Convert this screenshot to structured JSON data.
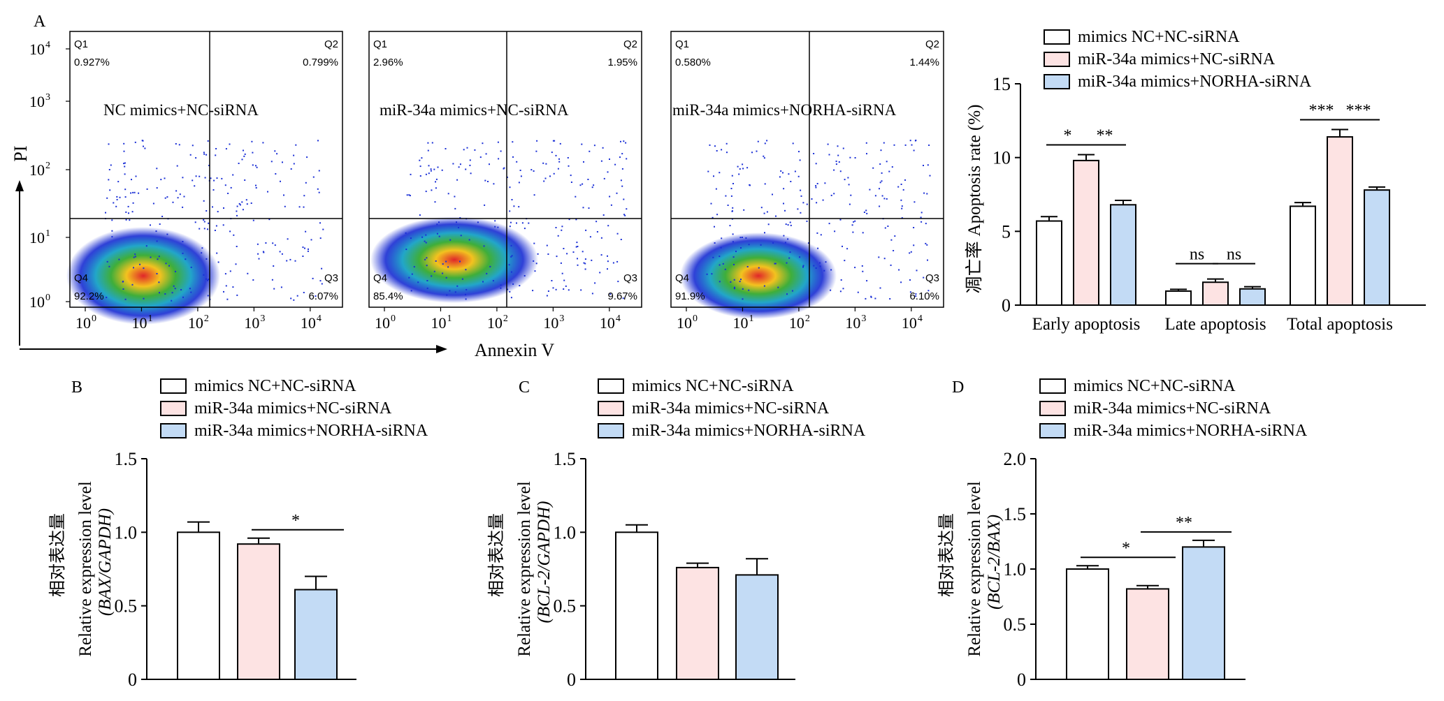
{
  "colors": {
    "group1": "#ffffff",
    "group2": "#fde3e3",
    "group3": "#c3dbf5",
    "stroke": "#000000"
  },
  "legend": [
    "mimics NC+NC-siRNA",
    "miR-34a mimics+NC-siRNA",
    "miR-34a mimics+NORHA-siRNA"
  ],
  "panel_labels": {
    "a": "A",
    "b": "B",
    "c": "C",
    "d": "D"
  },
  "flow": {
    "y_axis_label": "PI",
    "x_axis_label": "Annexin V",
    "x_tick_labels": [
      "0",
      "1",
      "2",
      "3",
      "4"
    ],
    "y_tick_labels": [
      "0",
      "1",
      "2",
      "3",
      "4"
    ],
    "plots": [
      {
        "title": "NC mimics+NC-siRNA",
        "quadrants": {
          "Q1": "0.927%",
          "Q2": "0.799%",
          "Q3": "6.07%",
          "Q4": "92.2%"
        }
      },
      {
        "title": "miR-34a mimics+NC-siRNA",
        "quadrants": {
          "Q1": "2.96%",
          "Q2": "1.95%",
          "Q3": "9.67%",
          "Q4": "85.4%"
        }
      },
      {
        "title": "miR-34a mimics+NORHA-siRNA",
        "quadrants": {
          "Q1": "0.580%",
          "Q2": "1.44%",
          "Q3": "6.10%",
          "Q4": "91.9%"
        }
      }
    ]
  },
  "chart_data": [
    {
      "type": "bar",
      "panel": "A",
      "ylabel_cn": "凋亡率",
      "ylabel": "Apoptosis rate (%)",
      "ylim": [
        0,
        15
      ],
      "yticks": [
        0,
        5,
        10,
        15
      ],
      "categories": [
        "Early apoptosis",
        "Late apoptosis",
        "Total apoptosis"
      ],
      "series": [
        {
          "name": "mimics NC+NC-siRNA",
          "values": [
            5.7,
            0.95,
            6.7
          ],
          "errors": [
            0.3,
            0.12,
            0.25
          ]
        },
        {
          "name": "miR-34a mimics+NC-siRNA",
          "values": [
            9.8,
            1.55,
            11.4
          ],
          "errors": [
            0.4,
            0.22,
            0.5
          ]
        },
        {
          "name": "miR-34a mimics+NORHA-siRNA",
          "values": [
            6.8,
            1.1,
            7.8
          ],
          "errors": [
            0.3,
            0.15,
            0.2
          ]
        }
      ],
      "significance": [
        {
          "category": 0,
          "from": 0,
          "to": 1,
          "label": "*"
        },
        {
          "category": 0,
          "from": 1,
          "to": 2,
          "label": "**"
        },
        {
          "category": 1,
          "from": 0,
          "to": 1,
          "label": "ns"
        },
        {
          "category": 1,
          "from": 1,
          "to": 2,
          "label": "ns"
        },
        {
          "category": 2,
          "from": 0,
          "to": 1,
          "label": "***"
        },
        {
          "category": 2,
          "from": 1,
          "to": 2,
          "label": "***"
        }
      ]
    },
    {
      "type": "bar",
      "panel": "B",
      "ylabel_cn": "相对表达量",
      "ylabel": "Relative expression level",
      "ylabel_sub": "(BAX/GAPDH)",
      "ylim": [
        0,
        1.5
      ],
      "yticks": [
        0,
        0.5,
        1.0,
        1.5
      ],
      "ytick_labels": [
        "0",
        "0.5",
        "1.0",
        "1.5"
      ],
      "series": [
        {
          "name": "mimics NC+NC-siRNA",
          "value": 1.0,
          "error": 0.07
        },
        {
          "name": "miR-34a mimics+NC-siRNA",
          "value": 0.92,
          "error": 0.04
        },
        {
          "name": "miR-34a mimics+NORHA-siRNA",
          "value": 0.61,
          "error": 0.09
        }
      ],
      "significance": [
        {
          "from": 1,
          "to": 2,
          "label": "*"
        }
      ]
    },
    {
      "type": "bar",
      "panel": "C",
      "ylabel_cn": "相对表达量",
      "ylabel": "Relative expression level",
      "ylabel_sub": "(BCL-2/GAPDH)",
      "ylim": [
        0,
        1.5
      ],
      "yticks": [
        0,
        0.5,
        1.0,
        1.5
      ],
      "ytick_labels": [
        "0",
        "0.5",
        "1.0",
        "1.5"
      ],
      "series": [
        {
          "name": "mimics NC+NC-siRNA",
          "value": 1.0,
          "error": 0.05
        },
        {
          "name": "miR-34a mimics+NC-siRNA",
          "value": 0.76,
          "error": 0.03
        },
        {
          "name": "miR-34a mimics+NORHA-siRNA",
          "value": 0.71,
          "error": 0.11
        }
      ],
      "significance": []
    },
    {
      "type": "bar",
      "panel": "D",
      "ylabel_cn": "相对表达量",
      "ylabel": "Relative expression level",
      "ylabel_sub": "(BCL-2/BAX)",
      "ylim": [
        0,
        2.0
      ],
      "yticks": [
        0,
        0.5,
        1.0,
        1.5,
        2.0
      ],
      "ytick_labels": [
        "0",
        "0.5",
        "1.0",
        "1.5",
        "2.0"
      ],
      "series": [
        {
          "name": "mimics NC+NC-siRNA",
          "value": 1.0,
          "error": 0.03
        },
        {
          "name": "miR-34a mimics+NC-siRNA",
          "value": 0.82,
          "error": 0.03
        },
        {
          "name": "miR-34a mimics+NORHA-siRNA",
          "value": 1.2,
          "error": 0.06
        }
      ],
      "significance": [
        {
          "from": 0,
          "to": 1,
          "label": "*"
        },
        {
          "from": 1,
          "to": 2,
          "label": "**"
        }
      ]
    }
  ]
}
